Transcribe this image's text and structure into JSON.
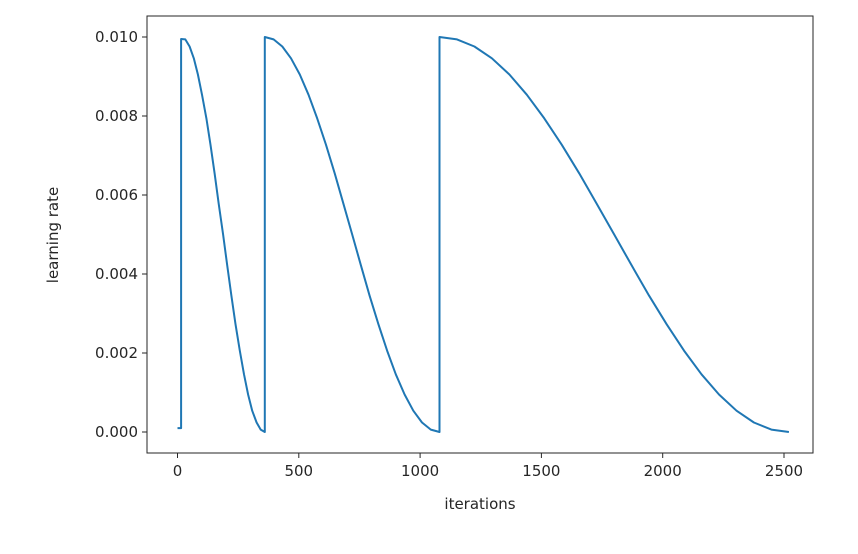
{
  "chart_data": {
    "type": "line",
    "title": "",
    "xlabel": "iterations",
    "ylabel": "learning rate",
    "xlim": [
      -125,
      2645
    ],
    "ylim": [
      -0.0005,
      0.0105
    ],
    "xticks": [
      0,
      500,
      1000,
      1500,
      2000,
      2500
    ],
    "xtick_labels": [
      "0",
      "500",
      "1000",
      "1500",
      "2000",
      "2500"
    ],
    "yticks": [
      0,
      0.002,
      0.004,
      0.006,
      0.008,
      0.01
    ],
    "ytick_labels": [
      "0.000",
      "0.002",
      "0.004",
      "0.006",
      "0.008",
      "0.010"
    ],
    "grid": false,
    "line_color": "#1f77b4",
    "series": [
      {
        "x": [
          0,
          15,
          15,
          32,
          50,
          67,
          84,
          101,
          119,
          136,
          153,
          170,
          188,
          205,
          222,
          239,
          257,
          274,
          291,
          308,
          326,
          343,
          360,
          360,
          396,
          432,
          468,
          504,
          540,
          576,
          612,
          648,
          684,
          720,
          756,
          792,
          828,
          864,
          900,
          936,
          972,
          1008,
          1044,
          1080,
          1080,
          1152,
          1224,
          1296,
          1368,
          1440,
          1512,
          1584,
          1656,
          1728,
          1800,
          1872,
          1944,
          2016,
          2088,
          2160,
          2232,
          2304,
          2376,
          2448,
          2520
        ],
        "y": [
          0.0001,
          0.0001,
          0.00995,
          0.00994,
          0.00976,
          0.00946,
          0.00905,
          0.00854,
          0.00794,
          0.00727,
          0.00655,
          0.00578,
          0.005,
          0.00422,
          0.00345,
          0.00273,
          0.00206,
          0.00146,
          0.00095,
          0.00054,
          0.00024,
          6e-05,
          0.0,
          0.01,
          0.00994,
          0.00976,
          0.00946,
          0.00905,
          0.00854,
          0.00794,
          0.00727,
          0.00655,
          0.00578,
          0.005,
          0.00422,
          0.00345,
          0.00273,
          0.00206,
          0.00146,
          0.00095,
          0.00054,
          0.00024,
          6e-05,
          0.0,
          0.01,
          0.00994,
          0.00976,
          0.00946,
          0.00905,
          0.00854,
          0.00794,
          0.00727,
          0.00655,
          0.00578,
          0.005,
          0.00422,
          0.00345,
          0.00273,
          0.00206,
          0.00146,
          0.00095,
          0.00054,
          0.00024,
          6e-05,
          0.0
        ]
      }
    ]
  }
}
